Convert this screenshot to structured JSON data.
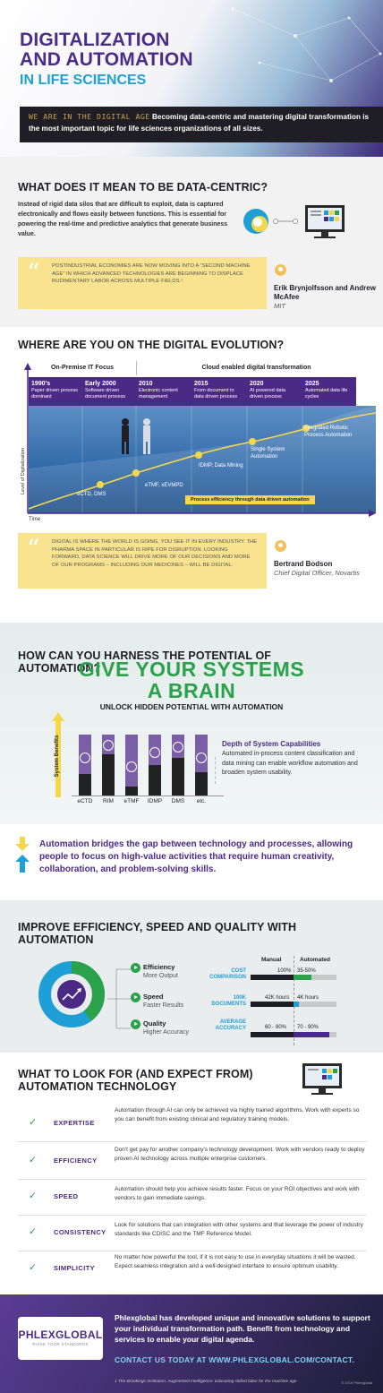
{
  "header": {
    "title_line1": "DIGITALIZATION",
    "title_line2": "AND AUTOMATION",
    "title_line3": "IN LIFE SCIENCES",
    "bar_lead": "WE ARE IN THE DIGITAL AGE",
    "bar_text": "Becoming data-centric and mastering digital transformation is the most important topic for life sciences organizations of all sizes."
  },
  "data_centric": {
    "heading": "WHAT DOES IT MEAN TO BE DATA-CENTRIC?",
    "paragraph": "Instead of rigid data silos that are difficult to exploit, data is captured electronically and flows easily between functions. This is essential for powering the real-time and predictive analytics that generate business value.",
    "quote": "POSTINDUSTRIAL ECONOMIES ARE NOW MOVING INTO A “SECOND MACHINE AGE” IN WHICH ADVANCED TECHNOLOGIES ARE BEGINNING TO DISPLACE RUDIMENTARY LABOR ACROSS MULTIPLE FIELDS.¹",
    "author_name": "Erik Brynjolfsson and Andrew McAfee",
    "author_org": "MIT"
  },
  "evolution": {
    "heading": "WHERE ARE YOU ON THE DIGITAL EVOLUTION?",
    "phase1": "On-Premise IT Focus",
    "phase2": "Cloud enabled digital transformation",
    "years": [
      {
        "year": "1990's",
        "desc": "Paper driven process dominant"
      },
      {
        "year": "Early 2000",
        "desc": "Software driven document process"
      },
      {
        "year": "2010",
        "desc": "Electronic content management"
      },
      {
        "year": "2015",
        "desc": "From document to data driven process"
      },
      {
        "year": "2020",
        "desc": "AI powered data driven process"
      },
      {
        "year": "2025",
        "desc": "Automated data life cycles"
      }
    ],
    "labels": {
      "ectd": "eCTD, DMS",
      "etmf": "eTMF, xEVMPD",
      "idmp": "IDMP, Data Mining",
      "single": "Single System Automation",
      "integrated": "Integrated Robotic Process Automation"
    },
    "banner": "Process efficiency through data driven automation",
    "y_axis": "Level of Digitalization",
    "x_axis": "Time",
    "quote": "DIGITAL IS WHERE THE WORLD IS GOING. YOU SEE IT IN EVERY INDUSTRY. THE PHARMA SPACE IN PARTICULAR IS RIPE FOR DISRUPTION. LOOKING FORWARD, DATA SCIENCE WILL DRIVE MORE OF OUR DECISIONS AND MORE OF OUR PROGRAMS – INCLUDING OUR MEDICINES – WILL BE DIGITAL.",
    "author_name": "Bertrand Bodson",
    "author_role": "Chief Digital Officer, Novartis"
  },
  "brain": {
    "heading": "HOW CAN YOU HARNESS THE POTENTIAL OF AUTOMATION?",
    "big1": "GIVE YOUR SYSTEMS",
    "big2": "A BRAIN",
    "sub": "UNLOCK HIDDEN POTENTIAL WITH AUTOMATION",
    "y_axis": "System Benefits",
    "columns": [
      "eCTD",
      "RIM",
      "eTMF",
      "IDMP",
      "DMS",
      "etc."
    ],
    "depth_title": "Depth of System Capabilities",
    "depth_text": "Automated in-process content classification and data mining can enable workflow automation and broaden system usability."
  },
  "bridge": {
    "text": "Automation bridges the gap between technology and processes, allowing people to focus on high-value activities that require human creativity, collaboration, and problem-solving skills."
  },
  "efficiency": {
    "heading": "IMPROVE EFFICIENCY, SPEED AND QUALITY WITH AUTOMATION",
    "items": [
      {
        "title": "Efficiency",
        "sub": "More Output"
      },
      {
        "title": "Speed",
        "sub": "Faster Results"
      },
      {
        "title": "Quality",
        "sub": "Higher Accuracy"
      }
    ],
    "manual_label": "Manual",
    "automated_label": "Automated",
    "rows": [
      {
        "label": "COST COMPARISON",
        "manual": "100%",
        "auto": "35-50%"
      },
      {
        "label": "100K DOCUMENTS",
        "manual": "42K hours",
        "auto": "4K hours"
      },
      {
        "label": "AVERAGE ACCURACY",
        "manual": "60 - 80%",
        "auto": "70 - 90%"
      }
    ]
  },
  "expect": {
    "heading": "WHAT TO LOOK FOR (AND EXPECT FROM) AUTOMATION TECHNOLOGY",
    "rows": [
      {
        "key": "EXPERTISE",
        "text": "Automation through AI can only be achieved via highly trained algorithms. Work with experts so you can benefit from existing clinical and regulatory training models."
      },
      {
        "key": "EFFICIENCY",
        "text": "Don't get pay for another company's technology development. Work with vendors ready to deploy proven AI technology across multiple enterprise customers."
      },
      {
        "key": "SPEED",
        "text": "Automation should help you achieve results faster. Focus on your ROI objectives and work with vendors to gain immediate savings."
      },
      {
        "key": "CONSISTENCY",
        "text": "Look for solutions that can integration with other systems and that leverage the power of industry standards like CDISC and the TMF Reference Model."
      },
      {
        "key": "SIMPLICITY",
        "text": "No matter how powerful the tool, if it is not easy to use in everyday situations it will be wasted. Expect seamless integration and a well-designed interface to ensure optimum usability."
      }
    ]
  },
  "footer": {
    "logo_name": "PHLEXGLOBAL",
    "logo_tag": "RAISE YOUR STANDARDS",
    "text": "Phlexglobal has developed unique and innovative solutions to support your individual transformation path. Benefit from technology and services to enable your digital agenda.",
    "cta": "CONTACT US TODAY AT WWW.PHLEXGLOBAL.COM/CONTACT.",
    "footnote": "1 The Brookings Institution, Augmented intelligence: Educating skilled labor for the machine age",
    "copyright": "© 2019 Phlexglobal"
  },
  "colors": {
    "purple": "#4b2a86",
    "green": "#2aa14a",
    "blue": "#1e9fd6",
    "yellow": "#f9e38e"
  }
}
